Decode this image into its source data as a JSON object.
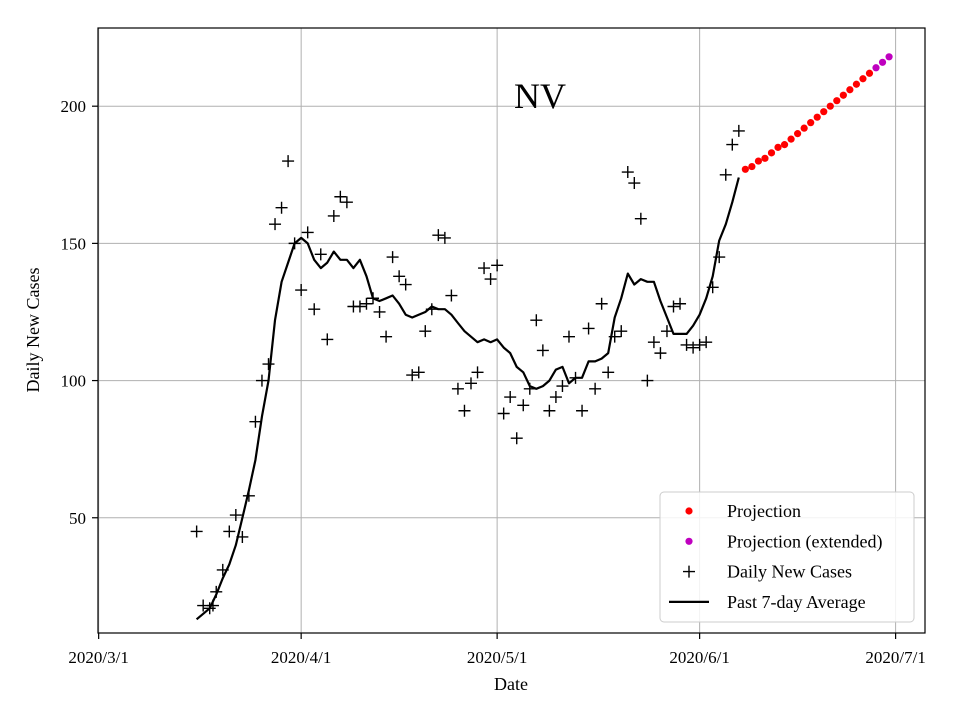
{
  "chart_data": {
    "type": "scatter",
    "title": "NV",
    "xlabel": "Date",
    "ylabel": "Daily New Cases",
    "xlim": [
      -0.1,
      126.5
    ],
    "ylim": [
      8,
      228.5
    ],
    "grid": true,
    "legend_placement": "lower-right",
    "x_ticks": [
      {
        "day": 0,
        "label": "2020/3/1"
      },
      {
        "day": 31,
        "label": "2020/4/1"
      },
      {
        "day": 61,
        "label": "2020/5/1"
      },
      {
        "day": 92,
        "label": "2020/6/1"
      },
      {
        "day": 122,
        "label": "2020/7/1"
      }
    ],
    "y_ticks": [
      50,
      100,
      150,
      200
    ],
    "colors": {
      "projection": "#ff0000",
      "projection_extended": "#bf00bf",
      "daily": "#000000",
      "average": "#000000"
    },
    "legend": [
      {
        "key": "projection",
        "label": "Projection"
      },
      {
        "key": "projection_extended",
        "label": "Projection (extended)"
      },
      {
        "key": "daily",
        "label": "Daily New Cases"
      },
      {
        "key": "average",
        "label": "Past 7-day Average"
      }
    ],
    "series": {
      "daily": {
        "name": "Daily New Cases",
        "points": [
          [
            15,
            45
          ],
          [
            16,
            18
          ],
          [
            17,
            17
          ],
          [
            17.5,
            18
          ],
          [
            18,
            23
          ],
          [
            19,
            31
          ],
          [
            20,
            45
          ],
          [
            21,
            51
          ],
          [
            22,
            43
          ],
          [
            23,
            58
          ],
          [
            24,
            85
          ],
          [
            25,
            100
          ],
          [
            26,
            106
          ],
          [
            27,
            157
          ],
          [
            28,
            163
          ],
          [
            29,
            180
          ],
          [
            30,
            150
          ],
          [
            31,
            133
          ],
          [
            32,
            154
          ],
          [
            33,
            126
          ],
          [
            34,
            146
          ],
          [
            35,
            115
          ],
          [
            36,
            160
          ],
          [
            37,
            167
          ],
          [
            38,
            165
          ],
          [
            39,
            127
          ],
          [
            40,
            127
          ],
          [
            41,
            128
          ],
          [
            42,
            130
          ],
          [
            43,
            125
          ],
          [
            44,
            116
          ],
          [
            45,
            145
          ],
          [
            46,
            138
          ],
          [
            47,
            135
          ],
          [
            48,
            102
          ],
          [
            49,
            103
          ],
          [
            50,
            118
          ],
          [
            51,
            126
          ],
          [
            52,
            153
          ],
          [
            53,
            152
          ],
          [
            54,
            131
          ],
          [
            55,
            97
          ],
          [
            56,
            89
          ],
          [
            57,
            99
          ],
          [
            58,
            103
          ],
          [
            59,
            141
          ],
          [
            60,
            137
          ],
          [
            61,
            142
          ],
          [
            62,
            88
          ],
          [
            63,
            94
          ],
          [
            64,
            79
          ],
          [
            65,
            91
          ],
          [
            66,
            97
          ],
          [
            67,
            122
          ],
          [
            68,
            111
          ],
          [
            69,
            89
          ],
          [
            70,
            94
          ],
          [
            71,
            98
          ],
          [
            72,
            116
          ],
          [
            73,
            101
          ],
          [
            74,
            89
          ],
          [
            75,
            119
          ],
          [
            76,
            97
          ],
          [
            77,
            128
          ],
          [
            78,
            103
          ],
          [
            79,
            116
          ],
          [
            80,
            118
          ],
          [
            81,
            176
          ],
          [
            82,
            172
          ],
          [
            83,
            159
          ],
          [
            84,
            100
          ],
          [
            85,
            114
          ],
          [
            86,
            110
          ],
          [
            87,
            118
          ],
          [
            88,
            127
          ],
          [
            89,
            128
          ],
          [
            90,
            113
          ],
          [
            91,
            112
          ],
          [
            92,
            113
          ],
          [
            93,
            114
          ],
          [
            94,
            134
          ],
          [
            95,
            145
          ],
          [
            96,
            175
          ],
          [
            97,
            186
          ],
          [
            98,
            191
          ]
        ]
      },
      "average": {
        "name": "Past 7-day Average",
        "points": [
          [
            15,
            13
          ],
          [
            16,
            15
          ],
          [
            17,
            17
          ],
          [
            18,
            22
          ],
          [
            19,
            28
          ],
          [
            20,
            33
          ],
          [
            21,
            40
          ],
          [
            22,
            50
          ],
          [
            23,
            60
          ],
          [
            24,
            71
          ],
          [
            25,
            87
          ],
          [
            26,
            100
          ],
          [
            27,
            122
          ],
          [
            28,
            136
          ],
          [
            29,
            143
          ],
          [
            30,
            150
          ],
          [
            31,
            152
          ],
          [
            32,
            150
          ],
          [
            33,
            144
          ],
          [
            34,
            141
          ],
          [
            35,
            143
          ],
          [
            36,
            147
          ],
          [
            37,
            144
          ],
          [
            38,
            144
          ],
          [
            39,
            141
          ],
          [
            40,
            144
          ],
          [
            41,
            138
          ],
          [
            42,
            130
          ],
          [
            43,
            129
          ],
          [
            44,
            130
          ],
          [
            45,
            131
          ],
          [
            46,
            128
          ],
          [
            47,
            124
          ],
          [
            48,
            123
          ],
          [
            49,
            124
          ],
          [
            50,
            125
          ],
          [
            51,
            127
          ],
          [
            52,
            126
          ],
          [
            53,
            126
          ],
          [
            54,
            124
          ],
          [
            55,
            121
          ],
          [
            56,
            118
          ],
          [
            57,
            116
          ],
          [
            58,
            114
          ],
          [
            59,
            115
          ],
          [
            60,
            114
          ],
          [
            61,
            115
          ],
          [
            62,
            112
          ],
          [
            63,
            110
          ],
          [
            64,
            105
          ],
          [
            65,
            103
          ],
          [
            66,
            98
          ],
          [
            67,
            97
          ],
          [
            68,
            98
          ],
          [
            69,
            100
          ],
          [
            70,
            104
          ],
          [
            71,
            105
          ],
          [
            72,
            99
          ],
          [
            73,
            101
          ],
          [
            74,
            101
          ],
          [
            75,
            107
          ],
          [
            76,
            107
          ],
          [
            77,
            108
          ],
          [
            78,
            110
          ],
          [
            79,
            123
          ],
          [
            80,
            130
          ],
          [
            81,
            139
          ],
          [
            82,
            135
          ],
          [
            83,
            137
          ],
          [
            84,
            136
          ],
          [
            85,
            136
          ],
          [
            86,
            129
          ],
          [
            87,
            123
          ],
          [
            88,
            117
          ],
          [
            89,
            117
          ],
          [
            90,
            117
          ],
          [
            91,
            120
          ],
          [
            92,
            124
          ],
          [
            93,
            130
          ],
          [
            94,
            138
          ],
          [
            95,
            151
          ],
          [
            96,
            157
          ],
          [
            97,
            165
          ],
          [
            98,
            174
          ]
        ]
      },
      "projection": {
        "name": "Projection",
        "points": [
          [
            99,
            177
          ],
          [
            100,
            178
          ],
          [
            101,
            180
          ],
          [
            102,
            181
          ],
          [
            103,
            183
          ],
          [
            104,
            185
          ],
          [
            105,
            186
          ],
          [
            106,
            188
          ],
          [
            107,
            190
          ],
          [
            108,
            192
          ],
          [
            109,
            194
          ],
          [
            110,
            196
          ],
          [
            111,
            198
          ],
          [
            112,
            200
          ],
          [
            113,
            202
          ],
          [
            114,
            204
          ],
          [
            115,
            206
          ],
          [
            116,
            208
          ],
          [
            117,
            210
          ],
          [
            118,
            212
          ]
        ]
      },
      "projection_extended": {
        "name": "Projection (extended)",
        "points": [
          [
            119,
            214
          ],
          [
            120,
            216
          ],
          [
            121,
            218
          ]
        ]
      }
    }
  }
}
